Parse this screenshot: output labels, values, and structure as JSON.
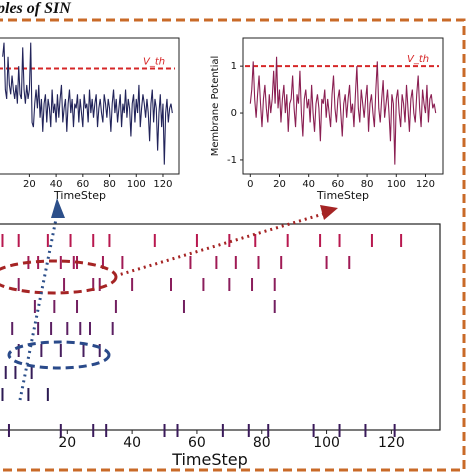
{
  "heading": "ples of SIN",
  "colors": {
    "frame": "#c96a28",
    "threshold": "#d62728",
    "left_trace": "#22245a",
    "right_trace": "#8a1f52",
    "raster_spike": "#4a1f5e",
    "red_ellipse": "#a52424",
    "blue_ellipse": "#2a4a8a",
    "blue_arrow": "#2c4f8a",
    "red_arrow": "#a52424"
  },
  "chart_data": [
    {
      "type": "line",
      "panel": "left",
      "xlabel": "TimeStep",
      "ylabel": "",
      "xlim": [
        -5,
        132
      ],
      "ylim": [
        -1.3,
        1.6
      ],
      "xticks": [
        20,
        40,
        60,
        80,
        100,
        120
      ],
      "threshold": {
        "label": "V_th",
        "value": 0.95
      },
      "values": [
        1.2,
        1.5,
        0.5,
        0.3,
        1.2,
        0.6,
        0.4,
        0.8,
        0.5,
        0.3,
        0.6,
        0.2,
        1.0,
        0.4,
        0.3,
        1.4,
        0.5,
        0.2,
        0.6,
        0.3,
        0.5,
        1.5,
        -0.2,
        -0.3,
        0.2,
        0.5,
        0.1,
        0.6,
        -0.1,
        0.3,
        -0.4,
        0.2,
        0.4,
        -0.2,
        0.3,
        0.1,
        -0.3,
        0.5,
        0.0,
        0.2,
        -0.2,
        0.4,
        -0.1,
        0.3,
        0.6,
        -0.2,
        0.1,
        0.3,
        -0.4,
        0.2,
        0.5,
        0.0,
        0.3,
        -0.3,
        0.2,
        0.1,
        0.4,
        -0.2,
        0.3,
        0.0,
        -0.3,
        0.4,
        0.1,
        0.2,
        -0.2,
        0.5,
        0.0,
        0.3,
        -0.1,
        0.2,
        0.4,
        -0.3,
        0.1,
        0.3,
        0.0,
        -0.2,
        0.4,
        0.2,
        -0.1,
        0.3,
        0.1,
        -0.4,
        0.2,
        0.5,
        0.0,
        0.3,
        -0.2,
        0.1,
        0.4,
        -0.3,
        0.2,
        0.0,
        0.5,
        -0.1,
        0.3,
        0.1,
        -0.5,
        0.2,
        0.4,
        -0.2,
        0.3,
        0.0,
        0.6,
        -0.3,
        0.1,
        0.4,
        0.2,
        -0.1,
        0.3,
        0.0,
        -0.6,
        0.2,
        0.5,
        -0.2,
        0.3,
        0.1,
        -0.8,
        0.0,
        0.4,
        -0.3,
        0.2,
        -1.1,
        0.0,
        0.3,
        -0.2,
        0.1,
        0.2,
        0.0
      ]
    },
    {
      "type": "line",
      "panel": "right",
      "xlabel": "TimeStep",
      "ylabel": "Membrane Potential",
      "xlim": [
        -5,
        132
      ],
      "ylim": [
        -1.3,
        1.6
      ],
      "xticks": [
        0,
        20,
        40,
        60,
        80,
        100,
        120
      ],
      "yticks": [
        -1,
        0,
        1
      ],
      "threshold": {
        "label": "V_th",
        "value": 1.0
      },
      "values": [
        0.2,
        0.5,
        1.1,
        0.3,
        -0.1,
        0.4,
        0.8,
        0.2,
        -0.3,
        0.3,
        0.6,
        0.1,
        -0.2,
        0.4,
        0.0,
        0.3,
        0.9,
        0.2,
        1.2,
        0.1,
        0.5,
        -0.2,
        0.3,
        0.6,
        0.0,
        0.4,
        -0.4,
        0.2,
        0.3,
        0.8,
        0.1,
        -0.3,
        0.4,
        0.2,
        0.9,
        0.0,
        -0.5,
        0.3,
        0.5,
        0.1,
        0.3,
        -0.2,
        0.6,
        0.0,
        -0.4,
        0.2,
        0.4,
        0.1,
        -0.6,
        0.3,
        0.2,
        0.5,
        -0.1,
        0.3,
        0.0,
        -0.3,
        0.4,
        0.8,
        0.1,
        -0.2,
        0.3,
        0.5,
        0.0,
        -0.5,
        0.2,
        0.4,
        -0.1,
        0.3,
        0.6,
        0.0,
        0.2,
        -0.3,
        0.4,
        1.0,
        0.1,
        -0.2,
        0.5,
        0.2,
        -0.1,
        0.3,
        0.6,
        -0.4,
        0.2,
        0.4,
        0.0,
        -0.3,
        0.5,
        1.1,
        0.1,
        -0.2,
        0.3,
        0.7,
        -0.1,
        0.2,
        0.5,
        0.0,
        -0.6,
        0.4,
        0.2,
        -1.1,
        0.3,
        0.5,
        0.0,
        -0.3,
        0.4,
        0.2,
        -0.2,
        0.6,
        0.1,
        -0.4,
        0.3,
        0.5,
        0.0,
        -0.2,
        0.4,
        0.8,
        0.1,
        -0.3,
        0.5,
        0.2,
        0.0,
        0.6,
        -0.2,
        0.3,
        0.4,
        0.1,
        0.2,
        0.0
      ]
    },
    {
      "type": "scatter",
      "panel": "raster",
      "xlabel": "TimeStep",
      "ylabel": "",
      "xlim": [
        -2,
        135
      ],
      "xticks": [
        20,
        40,
        60,
        80,
        100,
        120
      ],
      "rows": [
        {
          "spikes": [
            0,
            5,
            14,
            21,
            28,
            33,
            47,
            60,
            70,
            78,
            88,
            98,
            104,
            114,
            123
          ]
        },
        {
          "spikes": [
            8,
            11,
            18,
            22,
            23,
            31,
            37,
            58,
            66,
            72,
            79,
            86,
            100,
            107
          ]
        },
        {
          "spikes": [
            5,
            19,
            28,
            30,
            40,
            52,
            62,
            70,
            77,
            84
          ]
        },
        {
          "spikes": [
            10,
            16,
            23,
            35,
            56,
            84
          ]
        },
        {
          "spikes": [
            3,
            11,
            15,
            20,
            24,
            27,
            34
          ]
        },
        {
          "spikes": [
            5,
            12,
            18,
            25,
            30
          ]
        },
        {
          "spikes": [
            1,
            4,
            9
          ]
        },
        {
          "spikes": [
            0,
            8,
            14
          ]
        },
        {
          "spikes": [
            2,
            18,
            28,
            32,
            50,
            54,
            68,
            76,
            82,
            96,
            104,
            112,
            121
          ]
        }
      ]
    }
  ]
}
